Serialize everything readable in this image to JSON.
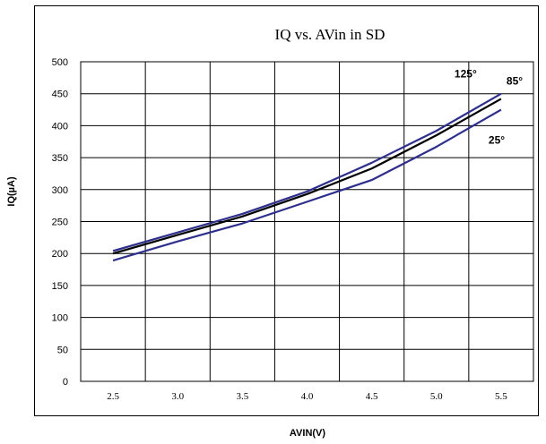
{
  "chart_data": {
    "type": "line",
    "title": "IQ vs. AVin  in SD",
    "xlabel": "AVIN(V)",
    "ylabel": "IQ(µA)",
    "x": [
      2.5,
      3.0,
      3.5,
      4.0,
      4.5,
      5.0,
      5.5
    ],
    "x_tick_labels": [
      "2.5",
      "3.0",
      "3.5",
      "4.0",
      "4.5",
      "5.0",
      "5.5"
    ],
    "xlim": [
      2.25,
      5.75
    ],
    "ylim": [
      0,
      500
    ],
    "y_ticks": [
      0,
      50,
      100,
      150,
      200,
      250,
      300,
      350,
      400,
      450,
      500
    ],
    "grid": true,
    "legend": "none",
    "series": [
      {
        "name": "125°",
        "color": "#2e2e8c",
        "values": [
          204,
          233,
          262,
          297,
          342,
          392,
          450
        ]
      },
      {
        "name": "85°",
        "color": "#000000",
        "values": [
          200,
          229,
          258,
          293,
          333,
          385,
          442
        ]
      },
      {
        "name": "25°",
        "color": "#2e2e8c",
        "values": [
          189,
          219,
          247,
          281,
          315,
          367,
          425
        ]
      }
    ]
  }
}
